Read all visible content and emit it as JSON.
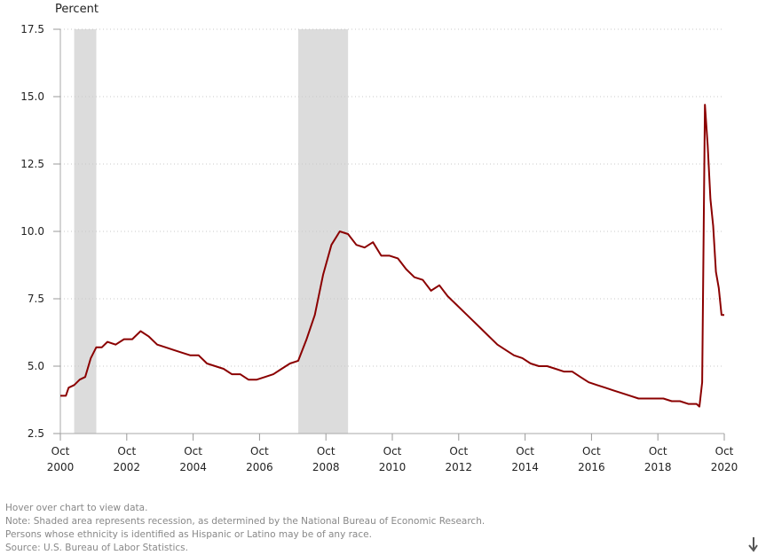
{
  "chart_data": {
    "type": "line",
    "ylabel": "Percent",
    "ylim": [
      2.5,
      17.5
    ],
    "yticks": [
      "2.5",
      "5.0",
      "7.5",
      "10.0",
      "12.5",
      "15.0",
      "17.5"
    ],
    "ytick_values": [
      2.5,
      5.0,
      7.5,
      10.0,
      12.5,
      15.0,
      17.5
    ],
    "xlim": [
      "2000-10",
      "2020-10"
    ],
    "xticks": [
      {
        "month": "Oct",
        "year": "2000"
      },
      {
        "month": "Oct",
        "year": "2002"
      },
      {
        "month": "Oct",
        "year": "2004"
      },
      {
        "month": "Oct",
        "year": "2006"
      },
      {
        "month": "Oct",
        "year": "2008"
      },
      {
        "month": "Oct",
        "year": "2010"
      },
      {
        "month": "Oct",
        "year": "2012"
      },
      {
        "month": "Oct",
        "year": "2014"
      },
      {
        "month": "Oct",
        "year": "2016"
      },
      {
        "month": "Oct",
        "year": "2018"
      },
      {
        "month": "Oct",
        "year": "2020"
      }
    ],
    "xtick_dates": [
      "2000-10",
      "2002-10",
      "2004-10",
      "2006-10",
      "2008-10",
      "2010-10",
      "2012-10",
      "2014-10",
      "2016-10",
      "2018-10",
      "2020-10"
    ],
    "grid": "horizontal dotted",
    "recessions": [
      {
        "start": "2001-03",
        "end": "2001-11"
      },
      {
        "start": "2007-12",
        "end": "2009-06"
      }
    ],
    "line_color": "#8b0000",
    "recession_color": "#dcdcdc",
    "series": [
      {
        "x": [
          "2000-10",
          "2000-12",
          "2001-01",
          "2001-03",
          "2001-05",
          "2001-07",
          "2001-09",
          "2001-11",
          "2002-01",
          "2002-03",
          "2002-06",
          "2002-09",
          "2002-12",
          "2003-03",
          "2003-06",
          "2003-09",
          "2003-12",
          "2004-03",
          "2004-06",
          "2004-09",
          "2004-12",
          "2005-03",
          "2005-06",
          "2005-09",
          "2005-12",
          "2006-03",
          "2006-06",
          "2006-09",
          "2006-12",
          "2007-03",
          "2007-06",
          "2007-09",
          "2007-12",
          "2008-03",
          "2008-06",
          "2008-09",
          "2008-12",
          "2009-03",
          "2009-06",
          "2009-09",
          "2009-12",
          "2010-03",
          "2010-06",
          "2010-09",
          "2010-12",
          "2011-03",
          "2011-06",
          "2011-09",
          "2011-12",
          "2012-03",
          "2012-06",
          "2012-09",
          "2012-12",
          "2013-03",
          "2013-06",
          "2013-09",
          "2013-12",
          "2014-03",
          "2014-06",
          "2014-09",
          "2014-12",
          "2015-03",
          "2015-06",
          "2015-09",
          "2015-12",
          "2016-03",
          "2016-06",
          "2016-09",
          "2016-12",
          "2017-03",
          "2017-06",
          "2017-09",
          "2017-12",
          "2018-03",
          "2018-06",
          "2018-09",
          "2018-12",
          "2019-03",
          "2019-06",
          "2019-09",
          "2019-12",
          "2020-01",
          "2020-02",
          "2020-03",
          "2020-04",
          "2020-05",
          "2020-06",
          "2020-07",
          "2020-08",
          "2020-09",
          "2020-10"
        ],
        "y": [
          3.9,
          3.9,
          4.2,
          4.3,
          4.5,
          4.6,
          5.3,
          5.7,
          5.7,
          5.9,
          5.8,
          6.0,
          6.0,
          6.3,
          6.1,
          5.8,
          5.7,
          5.6,
          5.5,
          5.4,
          5.4,
          5.1,
          5.0,
          4.9,
          4.7,
          4.7,
          4.5,
          4.5,
          4.6,
          4.7,
          4.9,
          5.1,
          5.2,
          6.0,
          6.9,
          8.4,
          9.5,
          10.0,
          9.9,
          9.5,
          9.4,
          9.6,
          9.1,
          9.1,
          9.0,
          8.6,
          8.3,
          8.2,
          7.8,
          8.0,
          7.6,
          7.3,
          7.0,
          6.7,
          6.4,
          6.1,
          5.8,
          5.6,
          5.4,
          5.3,
          5.1,
          5.0,
          5.0,
          4.9,
          4.8,
          4.8,
          4.6,
          4.4,
          4.3,
          4.2,
          4.1,
          4.0,
          3.9,
          3.8,
          3.8,
          3.8,
          3.8,
          3.7,
          3.7,
          3.6,
          3.6,
          3.5,
          4.4,
          14.7,
          13.2,
          11.2,
          10.2,
          8.5,
          7.9,
          6.9,
          6.9
        ]
      }
    ]
  },
  "footer": {
    "hover_hint": "Hover over chart to view data.",
    "note_recession": "Note: Shaded area represents recession, as determined by the National Bureau of Economic Research.",
    "note_ethnicity": "Persons whose ethnicity is identified as Hispanic or Latino may be of any race.",
    "source": "Source: U.S. Bureau of Labor Statistics."
  },
  "icons": {
    "download": "download-arrow-icon"
  }
}
